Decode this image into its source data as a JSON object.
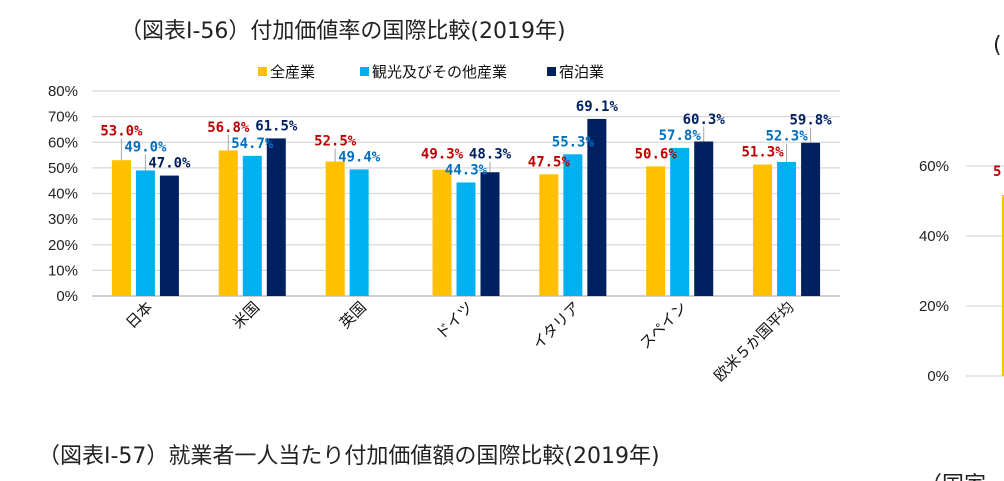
{
  "chart_data": {
    "type": "bar",
    "title": "（図表Ⅰ-56）付加価値率の国際比較(2019年)",
    "categories": [
      "日本",
      "米国",
      "英国",
      "ドイツ",
      "イタリア",
      "スペイン",
      "欧米５か国平均"
    ],
    "series": [
      {
        "name": "全産業",
        "color": "#FFC000",
        "label_color": "#C00000",
        "values": [
          53.0,
          56.8,
          52.5,
          49.3,
          47.5,
          50.6,
          51.3
        ]
      },
      {
        "name": "観光及びその他産業",
        "color": "#00B0F0",
        "label_color": "#0070C0",
        "values": [
          49.0,
          54.7,
          49.4,
          44.3,
          55.3,
          57.8,
          52.3
        ]
      },
      {
        "name": "宿泊業",
        "color": "#002060",
        "label_color": "#002060",
        "values": [
          47.0,
          61.5,
          null,
          48.3,
          69.1,
          60.3,
          59.8
        ]
      }
    ],
    "data_labels": [
      [
        "53.0%",
        "56.8%",
        "52.5%",
        "49.3%",
        "47.5%",
        "50.6%",
        "51.3%"
      ],
      [
        "49.0%",
        "54.7%",
        "49.4%",
        "44.3%",
        "55.3%",
        "57.8%",
        "52.3%"
      ],
      [
        "47.0%",
        "61.5%",
        "",
        "48.3%",
        "69.1%",
        "60.3%",
        "59.8%"
      ]
    ],
    "yticks": [
      "0%",
      "10%",
      "20%",
      "30%",
      "40%",
      "50%",
      "60%",
      "70%",
      "80%"
    ],
    "ylim": [
      0,
      80
    ],
    "xlabel": "",
    "ylabel": "",
    "grid": true,
    "legend": "top"
  },
  "right_chart": {
    "title_fragment": "(",
    "yticks": [
      "0%",
      "20%",
      "40%",
      "60%"
    ],
    "label_fragment": "5",
    "bottom_fragment": "（国家"
  },
  "next_title": "（図表Ⅰ-57）就業者一人当たり付加価値額の国際比較(2019年)"
}
